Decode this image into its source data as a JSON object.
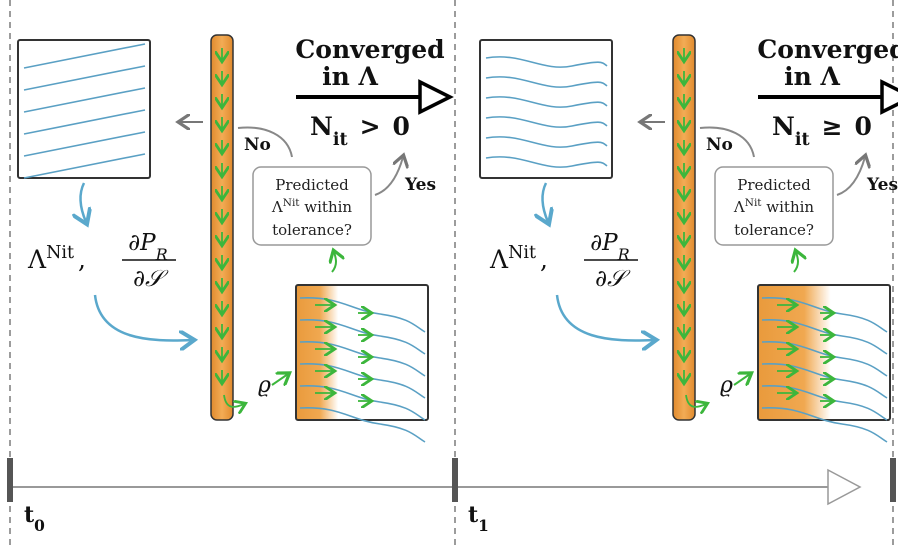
{
  "panels": [
    {
      "converged": [
        "Converged",
        "in Λ"
      ],
      "condition": {
        "symbol": "N",
        "subscript": "it",
        "operator": ">",
        "bound": "0"
      },
      "no": "No",
      "yes": "Yes",
      "question": {
        "line1": "Predicted",
        "lambda": "Λ",
        "superscript": "Nit",
        "line2_rest": " within",
        "line3": "tolerance?"
      },
      "formula": {
        "lambda": "Λ",
        "superscript": "Nit",
        "separator": ",",
        "numerator": "∂P",
        "numerator_sub": "R",
        "denominator": "∂𝒮"
      },
      "rho": "ϱ"
    },
    {
      "converged": [
        "Converged",
        "in Λ"
      ],
      "condition": {
        "symbol": "N",
        "subscript": "it",
        "operator": "≥",
        "bound": "0"
      },
      "no": "No",
      "yes": "Yes",
      "question": {
        "line1": "Predicted",
        "lambda": "Λ",
        "superscript": "Nit",
        "line2_rest": " within",
        "line3": "tolerance?"
      },
      "formula": {
        "lambda": "Λ",
        "superscript": "Nit",
        "separator": ",",
        "numerator": "∂P",
        "numerator_sub": "R",
        "denominator": "∂𝒮"
      },
      "rho": "ϱ"
    }
  ],
  "timeline": {
    "labels": [
      {
        "base": "t",
        "sub": "0"
      },
      {
        "base": "t",
        "sub": "1"
      }
    ]
  }
}
